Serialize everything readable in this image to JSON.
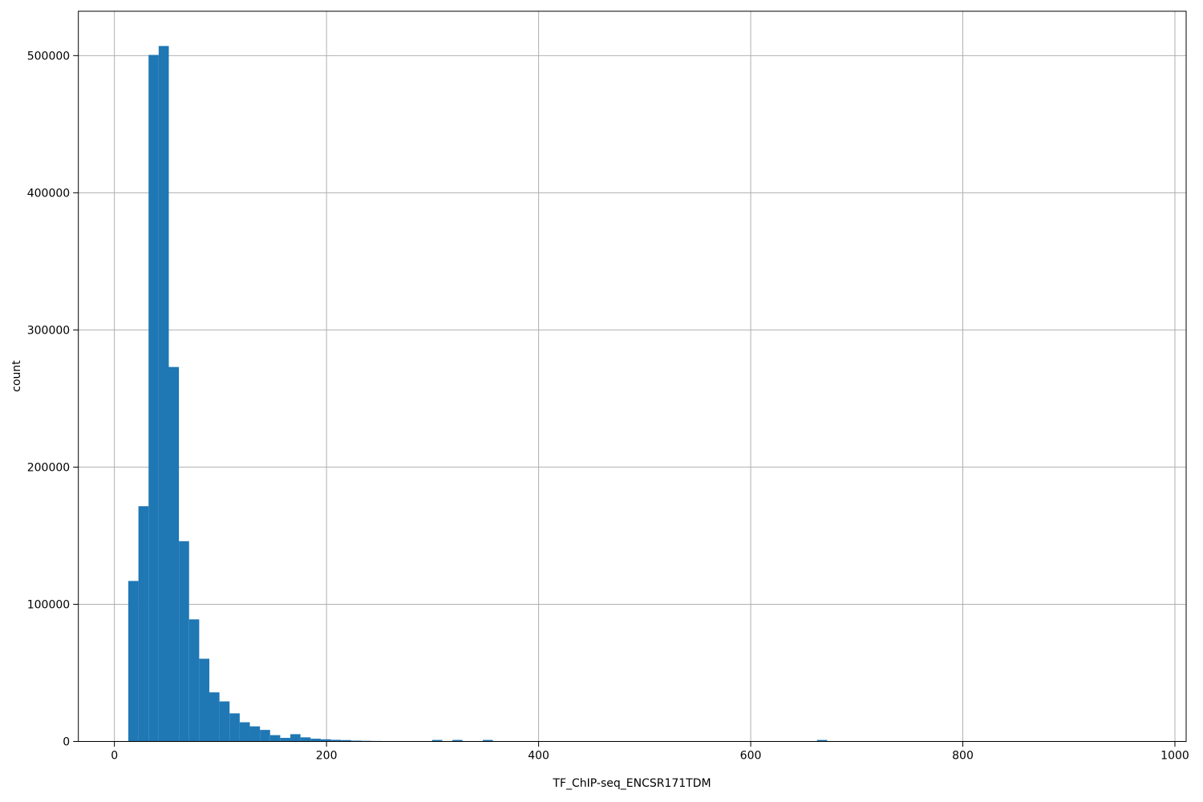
{
  "chart_data": {
    "type": "bar",
    "subtype": "histogram",
    "title": "",
    "xlabel": "TF_ChIP-seq_ENCSR171TDM",
    "ylabel": "count",
    "xlim": [
      -34,
      1010.6
    ],
    "ylim": [
      0,
      532350
    ],
    "x_ticks": [
      0,
      200,
      400,
      600,
      800,
      1000
    ],
    "y_ticks": [
      0,
      100000,
      200000,
      300000,
      400000,
      500000
    ],
    "grid": true,
    "legend": "none",
    "bar_color": "#1f77b4",
    "grid_color": "#b0b0b0",
    "spine_color": "#000000",
    "tick_label_color": "#000000",
    "bin_width": 9.55,
    "bins": [
      {
        "x0": 13.1,
        "count": 117000
      },
      {
        "x0": 22.65,
        "count": 171500
      },
      {
        "x0": 32.2,
        "count": 500500
      },
      {
        "x0": 41.75,
        "count": 507000
      },
      {
        "x0": 51.3,
        "count": 273000
      },
      {
        "x0": 60.85,
        "count": 146000
      },
      {
        "x0": 70.4,
        "count": 89000
      },
      {
        "x0": 79.95,
        "count": 60300
      },
      {
        "x0": 89.5,
        "count": 35800
      },
      {
        "x0": 99.05,
        "count": 29200
      },
      {
        "x0": 108.6,
        "count": 20500
      },
      {
        "x0": 118.15,
        "count": 14000
      },
      {
        "x0": 127.7,
        "count": 11000
      },
      {
        "x0": 137.25,
        "count": 8400
      },
      {
        "x0": 146.8,
        "count": 4600
      },
      {
        "x0": 156.35,
        "count": 2600
      },
      {
        "x0": 165.9,
        "count": 5300
      },
      {
        "x0": 175.45,
        "count": 3000
      },
      {
        "x0": 185.0,
        "count": 2000
      },
      {
        "x0": 194.55,
        "count": 1600
      },
      {
        "x0": 204.1,
        "count": 1200
      },
      {
        "x0": 213.65,
        "count": 1000
      },
      {
        "x0": 223.2,
        "count": 600
      },
      {
        "x0": 232.75,
        "count": 450
      },
      {
        "x0": 242.3,
        "count": 350
      },
      {
        "x0": 251.85,
        "count": 250
      },
      {
        "x0": 299.6,
        "count": 1100
      },
      {
        "x0": 318.7,
        "count": 1100
      },
      {
        "x0": 347.35,
        "count": 1100
      },
      {
        "x0": 662.5,
        "count": 1100
      }
    ]
  }
}
